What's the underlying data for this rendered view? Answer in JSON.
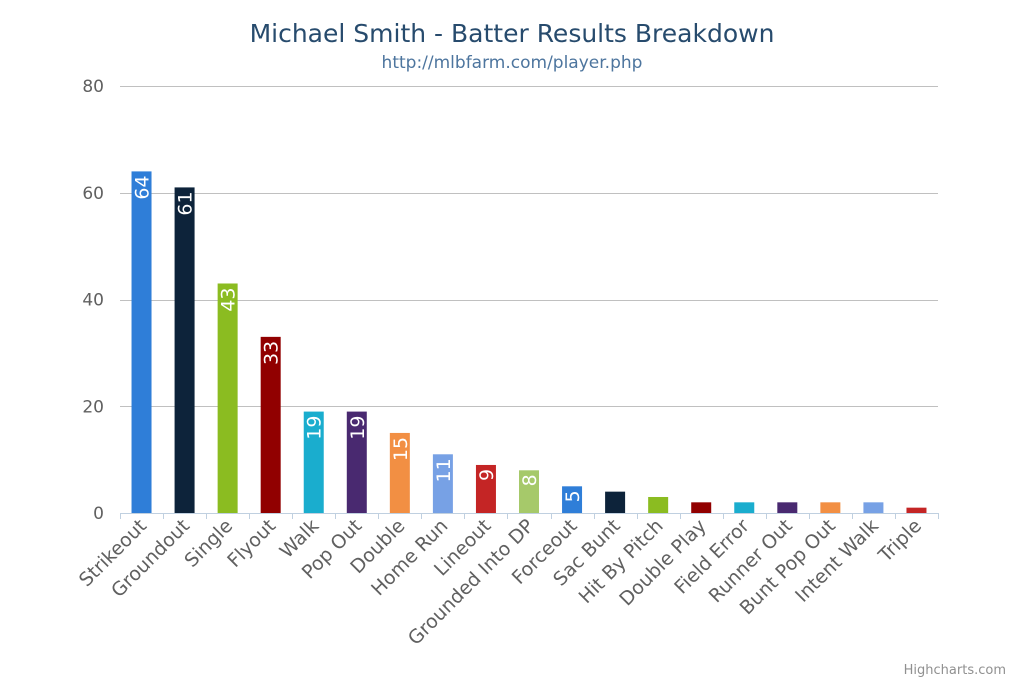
{
  "chart_data": {
    "type": "bar",
    "title": "Michael Smith - Batter Results Breakdown",
    "subtitle": "http://mlbfarm.com/player.php",
    "credits": "Highcharts.com",
    "categories": [
      "Strikeout",
      "Groundout",
      "Single",
      "Flyout",
      "Walk",
      "Pop Out",
      "Double",
      "Home Run",
      "Lineout",
      "Grounded Into DP",
      "Forceout",
      "Sac Bunt",
      "Hit By Pitch",
      "Double Play",
      "Field Error",
      "Runner Out",
      "Bunt Pop Out",
      "Intent Walk",
      "Triple"
    ],
    "values": [
      64,
      61,
      43,
      33,
      19,
      19,
      15,
      11,
      9,
      8,
      5,
      4,
      3,
      2,
      2,
      2,
      2,
      2,
      1
    ],
    "data_labels": [
      "64",
      "61",
      "43",
      "33",
      "19",
      "19",
      "15",
      "11",
      "9",
      "8",
      "5",
      "",
      "",
      "",
      "",
      "",
      "",
      "",
      ""
    ],
    "colors": [
      "#2f7ed8",
      "#0d233a",
      "#8bbc21",
      "#910000",
      "#1aadce",
      "#492970",
      "#f28f43",
      "#77a1e5",
      "#c42525",
      "#a6c96a",
      "#2f7ed8",
      "#0d233a",
      "#8bbc21",
      "#910000",
      "#1aadce",
      "#492970",
      "#f28f43",
      "#77a1e5",
      "#c42525"
    ],
    "ylim": [
      0,
      80
    ],
    "yticks": [
      0,
      20,
      40,
      60,
      80
    ],
    "xlabel": "",
    "ylabel": "",
    "grid": true,
    "legend": "none"
  }
}
